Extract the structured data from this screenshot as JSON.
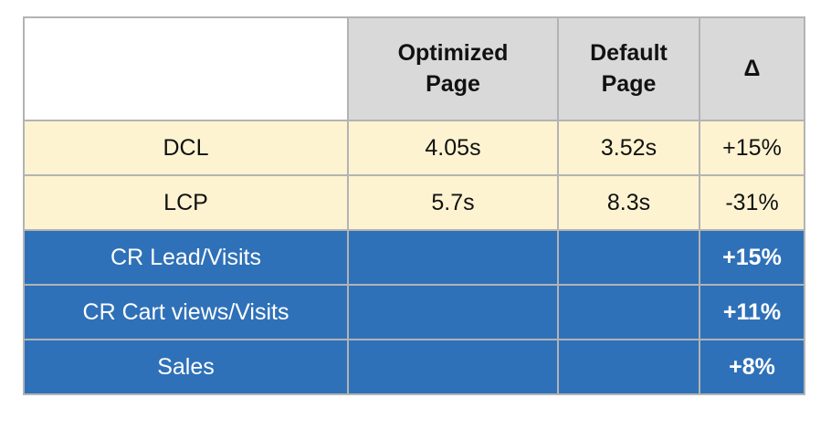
{
  "table": {
    "header": {
      "optimized": "Optimized Page",
      "default": "Default Page",
      "delta": "Δ"
    },
    "rows": [
      {
        "metric": "DCL",
        "optimized": "4.05s",
        "default": "3.52s",
        "delta": "+15%"
      },
      {
        "metric": "LCP",
        "optimized": "5.7s",
        "default": "8.3s",
        "delta": "-31%"
      },
      {
        "metric": "CR Lead/Visits",
        "delta": "+15%"
      },
      {
        "metric": "CR Cart views/Visits",
        "delta": "+11%"
      },
      {
        "metric": "Sales",
        "delta": "+8%"
      }
    ]
  }
}
